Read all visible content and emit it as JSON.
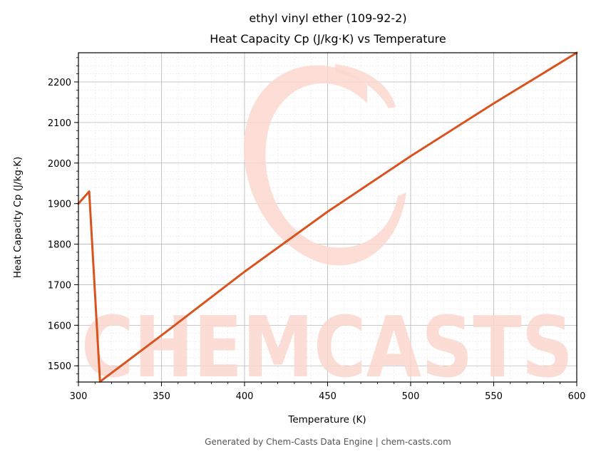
{
  "chart_data": {
    "type": "line",
    "title": "ethyl vinyl ether (109-92-2)",
    "subtitle": "Heat Capacity Cp (J/kg·K) vs Temperature",
    "xlabel": "Temperature (K)",
    "ylabel": "Heat Capacity Cp (J/kg·K)",
    "xlim": [
      300,
      600
    ],
    "ylim": [
      1460,
      2272
    ],
    "xticks": [
      300,
      350,
      400,
      450,
      500,
      550,
      600
    ],
    "yticks": [
      1500,
      1600,
      1700,
      1800,
      1900,
      2000,
      2100,
      2200
    ],
    "grid": true,
    "series": [
      {
        "color": "#d9531e",
        "x": [
          300,
          306.5,
          313,
          350,
          400,
          450,
          500,
          550,
          600
        ],
        "y": [
          1900,
          1930,
          1461,
          1575,
          1732,
          1880,
          2017,
          2147,
          2272
        ]
      }
    ]
  },
  "watermark": {
    "text": "CHEMCASTS"
  },
  "footer": {
    "text": "Generated by Chem-Casts Data Engine | chem-casts.com"
  }
}
